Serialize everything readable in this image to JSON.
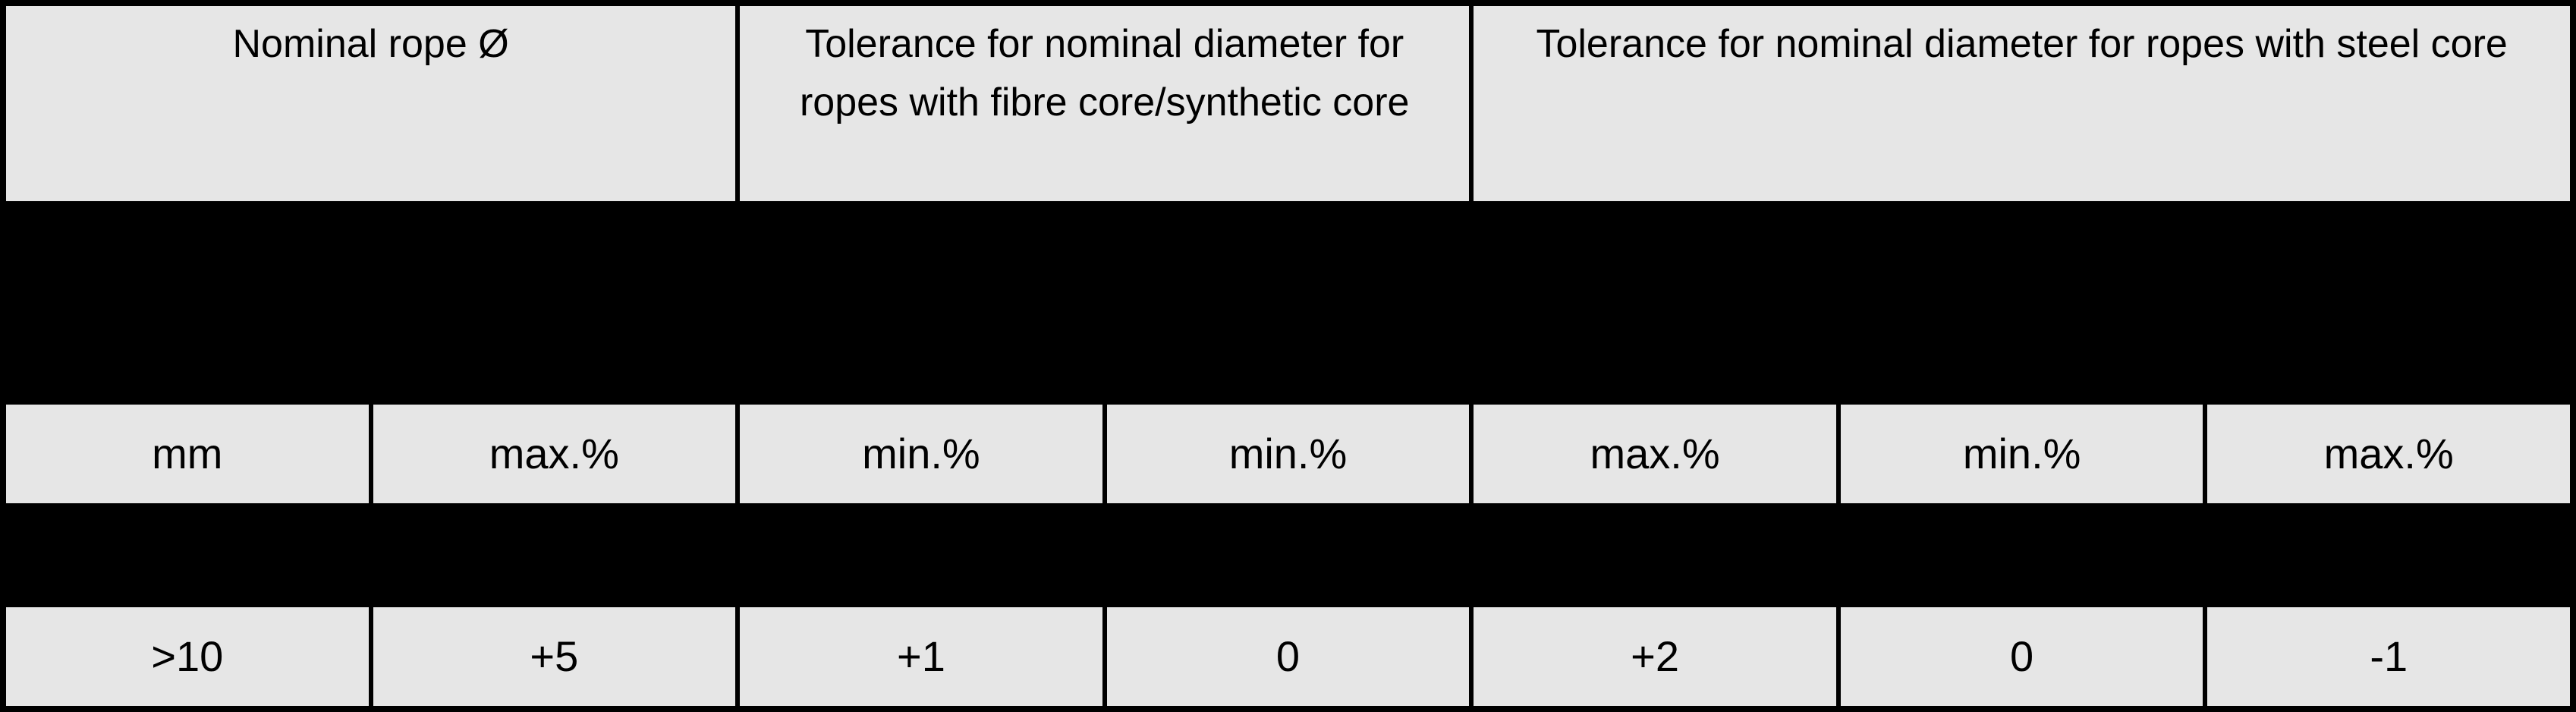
{
  "table": {
    "header_row": [
      {
        "label": "Nominal rope Ø",
        "span": 2
      },
      {
        "label": "Tolerance for nominal diameter for ropes with fibre core/synthetic core",
        "span": 2
      },
      {
        "label": "Tolerance for nominal diameter for ropes with steel core",
        "span": 3
      }
    ],
    "unit_row": [
      "mm",
      "max.%",
      "min.%",
      "min.%",
      "max.%",
      "min.%",
      "max.%"
    ],
    "data_row": [
      ">10",
      "+5",
      "+1",
      "0",
      "+2",
      "0",
      "-1"
    ]
  },
  "colors": {
    "page_background": "#000000",
    "cell_background": "#e6e6e6",
    "text": "#000000",
    "border": "#000000"
  }
}
